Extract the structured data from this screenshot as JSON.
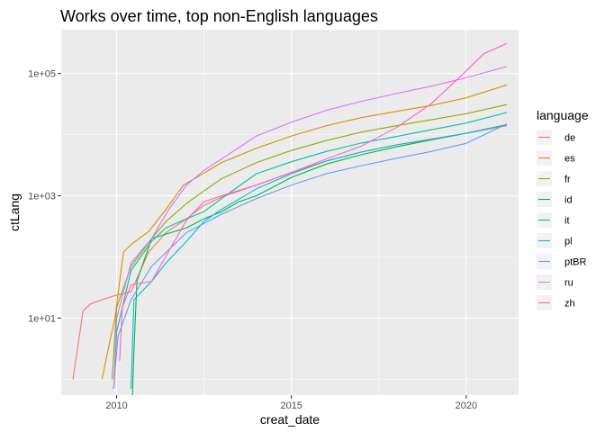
{
  "chart_data": {
    "type": "line",
    "title": "Works over time, top non-English languages",
    "xlabel": "creat_date",
    "ylabel": "ctLang",
    "x_type": "date",
    "y_scale": "log10",
    "xlim": [
      "2008-06-01",
      "2021-07-01"
    ],
    "ylim": [
      0.55,
      520000
    ],
    "x_ticks": [
      {
        "value": "2010-01-01",
        "label": "2010"
      },
      {
        "value": "2015-01-01",
        "label": "2015"
      },
      {
        "value": "2020-01-01",
        "label": "2020"
      }
    ],
    "y_ticks": [
      {
        "value": 10,
        "label": "1e+01"
      },
      {
        "value": 1000,
        "label": "1e+03"
      },
      {
        "value": 100000,
        "label": "1e+05"
      }
    ],
    "background": "#EBEBEB",
    "grid": true,
    "legend": {
      "title": "language",
      "position": "right"
    },
    "series": [
      {
        "name": "de",
        "color": "#F8766D",
        "points": [
          [
            "2008-10-01",
            1
          ],
          [
            "2008-12-15",
            6
          ],
          [
            "2009-01-15",
            13
          ],
          [
            "2009-04-01",
            17
          ],
          [
            "2009-08-01",
            20
          ],
          [
            "2009-12-01",
            23
          ],
          [
            "2010-06-01",
            27
          ],
          [
            "2010-12-01",
            120
          ],
          [
            "2011-06-01",
            250
          ],
          [
            "2012-01-01",
            420
          ],
          [
            "2012-07-01",
            700
          ],
          [
            "2013-01-01",
            950
          ],
          [
            "2014-01-01",
            1500
          ],
          [
            "2015-01-01",
            2400
          ],
          [
            "2016-01-01",
            3700
          ],
          [
            "2017-01-01",
            5200
          ],
          [
            "2018-01-01",
            6800
          ],
          [
            "2019-01-01",
            8500
          ],
          [
            "2020-01-01",
            10500
          ],
          [
            "2021-03-01",
            14000
          ]
        ]
      },
      {
        "name": "es",
        "color": "#D39200",
        "points": [
          [
            "2009-08-01",
            1
          ],
          [
            "2009-11-01",
            5
          ],
          [
            "2009-12-15",
            10
          ],
          [
            "2010-02-01",
            40
          ],
          [
            "2010-03-15",
            120
          ],
          [
            "2010-06-01",
            160
          ],
          [
            "2010-12-01",
            260
          ],
          [
            "2011-06-01",
            600
          ],
          [
            "2011-12-01",
            1500
          ],
          [
            "2012-06-01",
            2200
          ],
          [
            "2013-01-01",
            3500
          ],
          [
            "2014-01-01",
            6000
          ],
          [
            "2015-01-01",
            9500
          ],
          [
            "2016-01-01",
            14000
          ],
          [
            "2017-01-01",
            19000
          ],
          [
            "2018-01-01",
            24000
          ],
          [
            "2019-01-01",
            30000
          ],
          [
            "2020-01-01",
            40000
          ],
          [
            "2021-03-01",
            65000
          ]
        ]
      },
      {
        "name": "fr",
        "color": "#93AA00",
        "points": [
          [
            "2009-11-15",
            1
          ],
          [
            "2010-01-01",
            15
          ],
          [
            "2010-06-01",
            70
          ],
          [
            "2011-01-01",
            200
          ],
          [
            "2011-06-01",
            380
          ],
          [
            "2012-01-01",
            750
          ],
          [
            "2012-07-01",
            1200
          ],
          [
            "2013-01-01",
            1900
          ],
          [
            "2014-01-01",
            3500
          ],
          [
            "2015-01-01",
            5500
          ],
          [
            "2016-01-01",
            8000
          ],
          [
            "2017-01-01",
            11000
          ],
          [
            "2018-01-01",
            14000
          ],
          [
            "2019-01-01",
            17500
          ],
          [
            "2020-01-01",
            22000
          ],
          [
            "2021-03-01",
            31000
          ]
        ]
      },
      {
        "name": "id",
        "color": "#00BA38",
        "points": [
          [
            "2010-06-15",
            0.55
          ],
          [
            "2010-07-01",
            3
          ],
          [
            "2010-08-01",
            40
          ],
          [
            "2011-01-01",
            200
          ],
          [
            "2012-01-01",
            300
          ],
          [
            "2012-07-01",
            420
          ],
          [
            "2013-01-01",
            550
          ],
          [
            "2013-07-01",
            800
          ],
          [
            "2014-01-01",
            1000
          ],
          [
            "2015-01-01",
            2000
          ],
          [
            "2016-01-01",
            3300
          ],
          [
            "2017-01-01",
            4700
          ],
          [
            "2018-01-01",
            6300
          ],
          [
            "2019-01-01",
            8200
          ],
          [
            "2020-01-01",
            10500
          ],
          [
            "2021-03-01",
            14500
          ]
        ]
      },
      {
        "name": "it",
        "color": "#00C19F",
        "points": [
          [
            "2009-12-01",
            0.7
          ],
          [
            "2010-01-01",
            6
          ],
          [
            "2010-06-01",
            60
          ],
          [
            "2011-01-01",
            180
          ],
          [
            "2011-06-01",
            300
          ],
          [
            "2012-01-01",
            420
          ],
          [
            "2012-07-01",
            550
          ],
          [
            "2013-01-01",
            900
          ],
          [
            "2014-01-01",
            2300
          ],
          [
            "2015-01-01",
            3600
          ],
          [
            "2016-01-01",
            5300
          ],
          [
            "2017-01-01",
            7300
          ],
          [
            "2018-01-01",
            9300
          ],
          [
            "2019-01-01",
            12000
          ],
          [
            "2020-01-01",
            15500
          ],
          [
            "2021-03-01",
            23000
          ]
        ]
      },
      {
        "name": "pl",
        "color": "#00B9E3",
        "points": [
          [
            "2010-06-01",
            0.7
          ],
          [
            "2010-07-01",
            20
          ],
          [
            "2011-01-01",
            40
          ],
          [
            "2011-06-01",
            80
          ],
          [
            "2012-01-01",
            180
          ],
          [
            "2012-07-01",
            380
          ],
          [
            "2013-01-01",
            600
          ],
          [
            "2014-01-01",
            1300
          ],
          [
            "2015-01-01",
            2300
          ],
          [
            "2016-01-01",
            3700
          ],
          [
            "2017-01-01",
            5200
          ],
          [
            "2018-01-01",
            6800
          ],
          [
            "2019-01-01",
            8300
          ],
          [
            "2020-01-01",
            10500
          ],
          [
            "2021-03-01",
            14500
          ]
        ]
      },
      {
        "name": "ptBR",
        "color": "#619CFF",
        "points": [
          [
            "2009-12-01",
            0.7
          ],
          [
            "2010-01-15",
            5
          ],
          [
            "2010-06-01",
            20
          ],
          [
            "2011-01-01",
            70
          ],
          [
            "2012-01-01",
            250
          ],
          [
            "2013-01-01",
            500
          ],
          [
            "2014-01-01",
            900
          ],
          [
            "2015-01-01",
            1500
          ],
          [
            "2016-01-01",
            2300
          ],
          [
            "2017-01-01",
            3100
          ],
          [
            "2018-01-01",
            4100
          ],
          [
            "2019-01-01",
            5300
          ],
          [
            "2020-01-01",
            7200
          ],
          [
            "2021-03-01",
            15000
          ]
        ]
      },
      {
        "name": "ru",
        "color": "#DB72FB",
        "points": [
          [
            "2009-12-01",
            0.7
          ],
          [
            "2010-01-01",
            10
          ],
          [
            "2010-06-01",
            80
          ],
          [
            "2011-01-01",
            200
          ],
          [
            "2011-07-01",
            600
          ],
          [
            "2012-01-01",
            1500
          ],
          [
            "2012-07-01",
            2600
          ],
          [
            "2013-01-01",
            4000
          ],
          [
            "2014-01-01",
            9500
          ],
          [
            "2015-01-01",
            16000
          ],
          [
            "2016-01-01",
            25000
          ],
          [
            "2017-01-01",
            35000
          ],
          [
            "2018-01-01",
            47000
          ],
          [
            "2019-01-01",
            62000
          ],
          [
            "2020-01-01",
            85000
          ],
          [
            "2021-03-01",
            130000
          ]
        ]
      },
      {
        "name": "zh",
        "color": "#FF61C3",
        "points": [
          [
            "2010-02-01",
            2
          ],
          [
            "2010-03-01",
            15
          ],
          [
            "2010-06-01",
            35
          ],
          [
            "2011-01-01",
            40
          ],
          [
            "2012-01-01",
            400
          ],
          [
            "2012-07-01",
            800
          ],
          [
            "2013-01-01",
            1000
          ],
          [
            "2014-01-01",
            1500
          ],
          [
            "2015-01-01",
            2400
          ],
          [
            "2016-01-01",
            4000
          ],
          [
            "2017-01-01",
            6500
          ],
          [
            "2018-01-01",
            13000
          ],
          [
            "2019-01-01",
            32000
          ],
          [
            "2020-01-01",
            110000
          ],
          [
            "2020-07-01",
            210000
          ],
          [
            "2021-03-01",
            310000
          ]
        ]
      }
    ]
  }
}
